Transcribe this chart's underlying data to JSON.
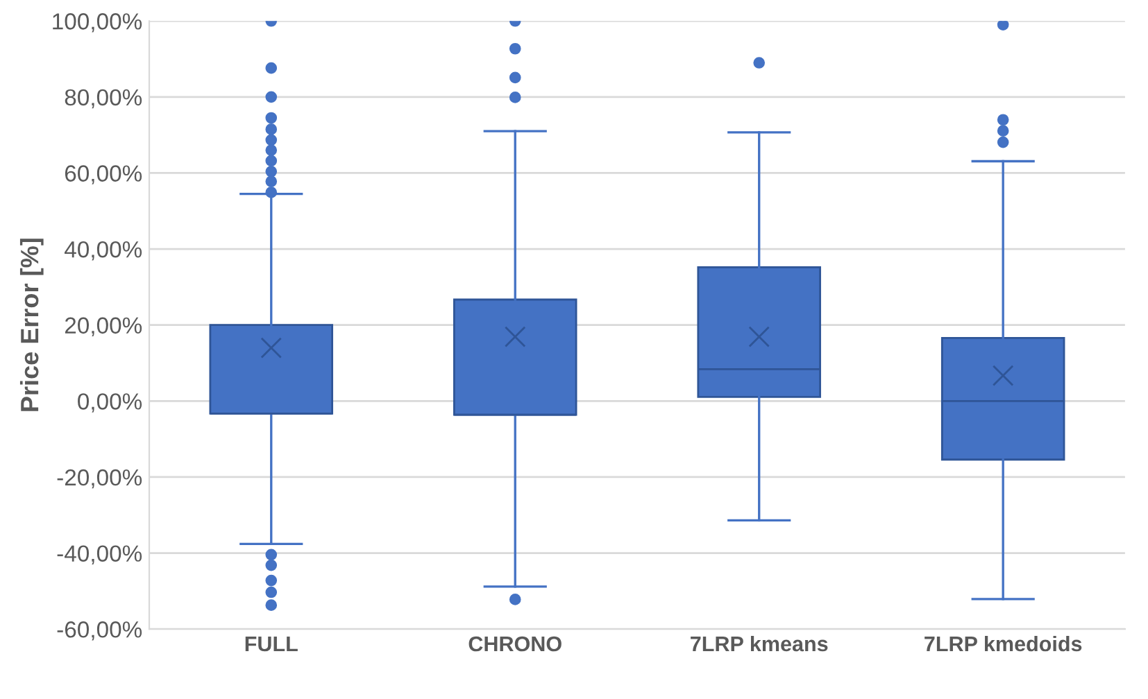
{
  "chart_data": {
    "type": "box",
    "ylabel": "Price Error [%]",
    "categories": [
      "FULL",
      "CHRONO",
      "7LRP kmeans",
      "7LRP kmedoids"
    ],
    "color": "#4472c4",
    "grid": "y",
    "ylim": [
      -60,
      100
    ],
    "yticks": [
      {
        "value": -60,
        "label": "-60,00%"
      },
      {
        "value": -40,
        "label": "-40,00%"
      },
      {
        "value": -20,
        "label": "-20,00%"
      },
      {
        "value": 0,
        "label": "0,00%"
      },
      {
        "value": 20,
        "label": "20,00%"
      },
      {
        "value": 40,
        "label": "40,00%"
      },
      {
        "value": 60,
        "label": "60,00%"
      },
      {
        "value": 80,
        "label": "80,00%"
      },
      {
        "value": 100,
        "label": "100,00%"
      }
    ],
    "boxes": [
      {
        "low": -37.6,
        "q1": -3.3,
        "median": -3.3,
        "q3": 20,
        "high": 54.5,
        "mean": 14,
        "outliers": [
          100,
          87.6,
          80,
          74.5,
          71.5,
          68.7,
          66,
          63.2,
          60.4,
          57.8,
          54.9,
          -40.4,
          -43.2,
          -47.2,
          -50.3,
          -53.7
        ]
      },
      {
        "low": -48.8,
        "q1": -3.6,
        "median": -3.6,
        "q3": 26.7,
        "high": 71,
        "mean": 16.9,
        "outliers": [
          100,
          92.7,
          85.1,
          79.9,
          -52.2
        ]
      },
      {
        "low": -31.4,
        "q1": 1.1,
        "median": 8.4,
        "q3": 35.2,
        "high": 70.7,
        "mean": 16.9,
        "outliers": [
          89
        ]
      },
      {
        "low": -52.1,
        "q1": -15.4,
        "median": 0,
        "q3": 16.6,
        "high": 63.1,
        "mean": 6.7,
        "outliers": [
          99,
          74,
          71.1,
          68.1
        ]
      }
    ]
  }
}
